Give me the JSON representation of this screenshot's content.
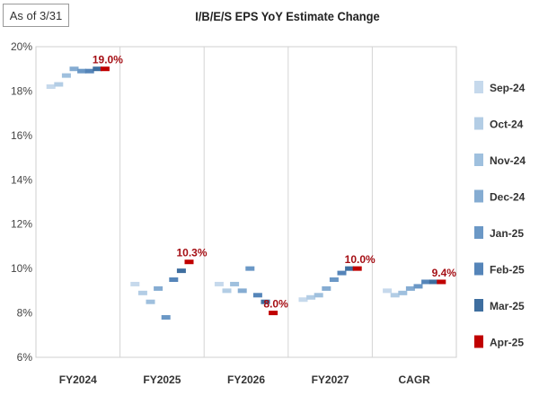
{
  "header": {
    "as_of": "As of 3/31",
    "title": "I/B/E/S EPS YoY Estimate Change"
  },
  "chart_data": {
    "type": "scatter",
    "title": "I/B/E/S EPS YoY Estimate Change",
    "xlabel": "",
    "ylabel": "",
    "categories": [
      "FY2024",
      "FY2025",
      "FY2026",
      "FY2027",
      "CAGR"
    ],
    "y_ticks": [
      "6%",
      "8%",
      "10%",
      "12%",
      "14%",
      "16%",
      "18%",
      "20%"
    ],
    "ylim": [
      6,
      20
    ],
    "grid": "vertical separators between categories",
    "legend": "right",
    "series": [
      {
        "name": "Sep-24",
        "color": "#c6d9ec",
        "values": [
          18.2,
          9.3,
          9.3,
          8.6,
          9.0
        ]
      },
      {
        "name": "Oct-24",
        "color": "#b3cde5",
        "values": [
          18.3,
          8.9,
          9.0,
          8.7,
          8.8
        ]
      },
      {
        "name": "Nov-24",
        "color": "#9fc0de",
        "values": [
          18.7,
          8.5,
          9.3,
          8.8,
          8.9
        ]
      },
      {
        "name": "Dec-24",
        "color": "#85acd2",
        "values": [
          19.0,
          9.1,
          9.0,
          9.1,
          9.1
        ]
      },
      {
        "name": "Jan-25",
        "color": "#6b98c6",
        "values": [
          18.9,
          7.8,
          10.0,
          9.5,
          9.2
        ]
      },
      {
        "name": "Feb-25",
        "color": "#5585b9",
        "values": [
          18.9,
          9.5,
          8.8,
          9.8,
          9.4
        ]
      },
      {
        "name": "Mar-25",
        "color": "#3e6e9f",
        "values": [
          19.0,
          9.9,
          8.5,
          10.0,
          9.4
        ]
      },
      {
        "name": "Apr-25",
        "color": "#c00000",
        "values": [
          19.0,
          10.3,
          8.0,
          10.0,
          9.4
        ]
      }
    ],
    "data_labels": [
      "19.0%",
      "10.3%",
      "8.0%",
      "10.0%",
      "9.4%"
    ]
  }
}
